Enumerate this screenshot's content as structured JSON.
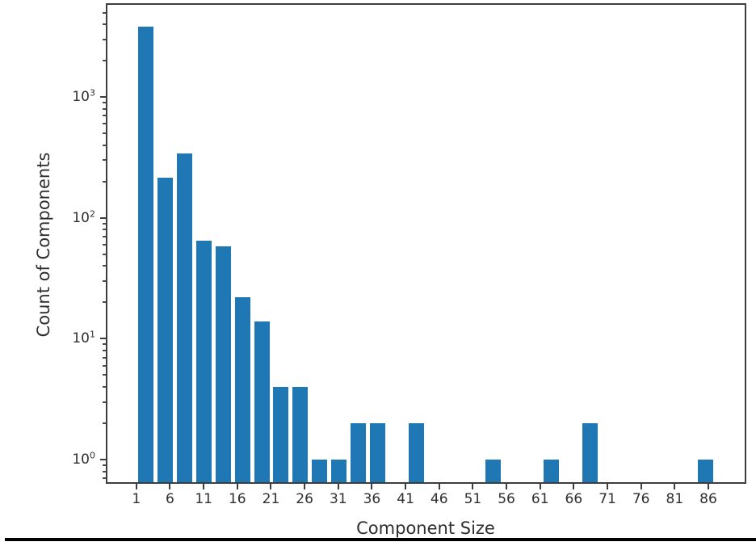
{
  "chart_data": {
    "type": "bar",
    "subtype": "histogram",
    "title": "",
    "xlabel": "Component Size",
    "ylabel": "Count of Components",
    "y_scale": "log",
    "grid": false,
    "legend": null,
    "xlim": [
      -3.3,
      91.4
    ],
    "ylim": [
      0.65,
      5800
    ],
    "xticks": [
      1,
      6,
      11,
      16,
      21,
      26,
      31,
      36,
      41,
      46,
      51,
      56,
      61,
      66,
      71,
      76,
      81,
      86
    ],
    "ytick_base": "10",
    "ytick_exponents": [
      0,
      1,
      2,
      3
    ],
    "bin_start": 1.0,
    "bin_width": 2.8667,
    "bar_relative_width": 0.8,
    "counts": [
      3800,
      215,
      340,
      65,
      58,
      22,
      14,
      4,
      4,
      1,
      1,
      2,
      2,
      0,
      2,
      0,
      0,
      0,
      1,
      0,
      0,
      1,
      0,
      2,
      0,
      0,
      0,
      0,
      0,
      1
    ],
    "bars_nonzero": [
      {
        "bin_range": "1.0-3.87",
        "center": 2.43,
        "count": 3800
      },
      {
        "bin_range": "3.87-6.73",
        "center": 5.3,
        "count": 215
      },
      {
        "bin_range": "6.73-9.6",
        "center": 8.17,
        "count": 340
      },
      {
        "bin_range": "9.6-12.47",
        "center": 11.03,
        "count": 65
      },
      {
        "bin_range": "12.47-15.33",
        "center": 13.9,
        "count": 58
      },
      {
        "bin_range": "15.33-18.2",
        "center": 16.77,
        "count": 22
      },
      {
        "bin_range": "18.2-21.07",
        "center": 19.63,
        "count": 14
      },
      {
        "bin_range": "21.07-23.93",
        "center": 22.5,
        "count": 4
      },
      {
        "bin_range": "23.93-26.8",
        "center": 25.37,
        "count": 4
      },
      {
        "bin_range": "26.8-29.67",
        "center": 28.23,
        "count": 1
      },
      {
        "bin_range": "29.67-32.53",
        "center": 31.1,
        "count": 1
      },
      {
        "bin_range": "32.53-35.4",
        "center": 33.97,
        "count": 2
      },
      {
        "bin_range": "35.4-38.27",
        "center": 36.83,
        "count": 2
      },
      {
        "bin_range": "41.13-44.0",
        "center": 42.57,
        "count": 2
      },
      {
        "bin_range": "52.6-55.47",
        "center": 54.03,
        "count": 1
      },
      {
        "bin_range": "61.2-64.07",
        "center": 62.63,
        "count": 1
      },
      {
        "bin_range": "66.93-69.8",
        "center": 68.37,
        "count": 2
      },
      {
        "bin_range": "84.13-87.0",
        "center": 85.57,
        "count": 1
      }
    ],
    "colors": {
      "bar": "#1f77b4",
      "spine": "#3d3d3d",
      "text": "#2f2f2f",
      "background": "#ffffff",
      "bottom_border": "#000000"
    }
  }
}
